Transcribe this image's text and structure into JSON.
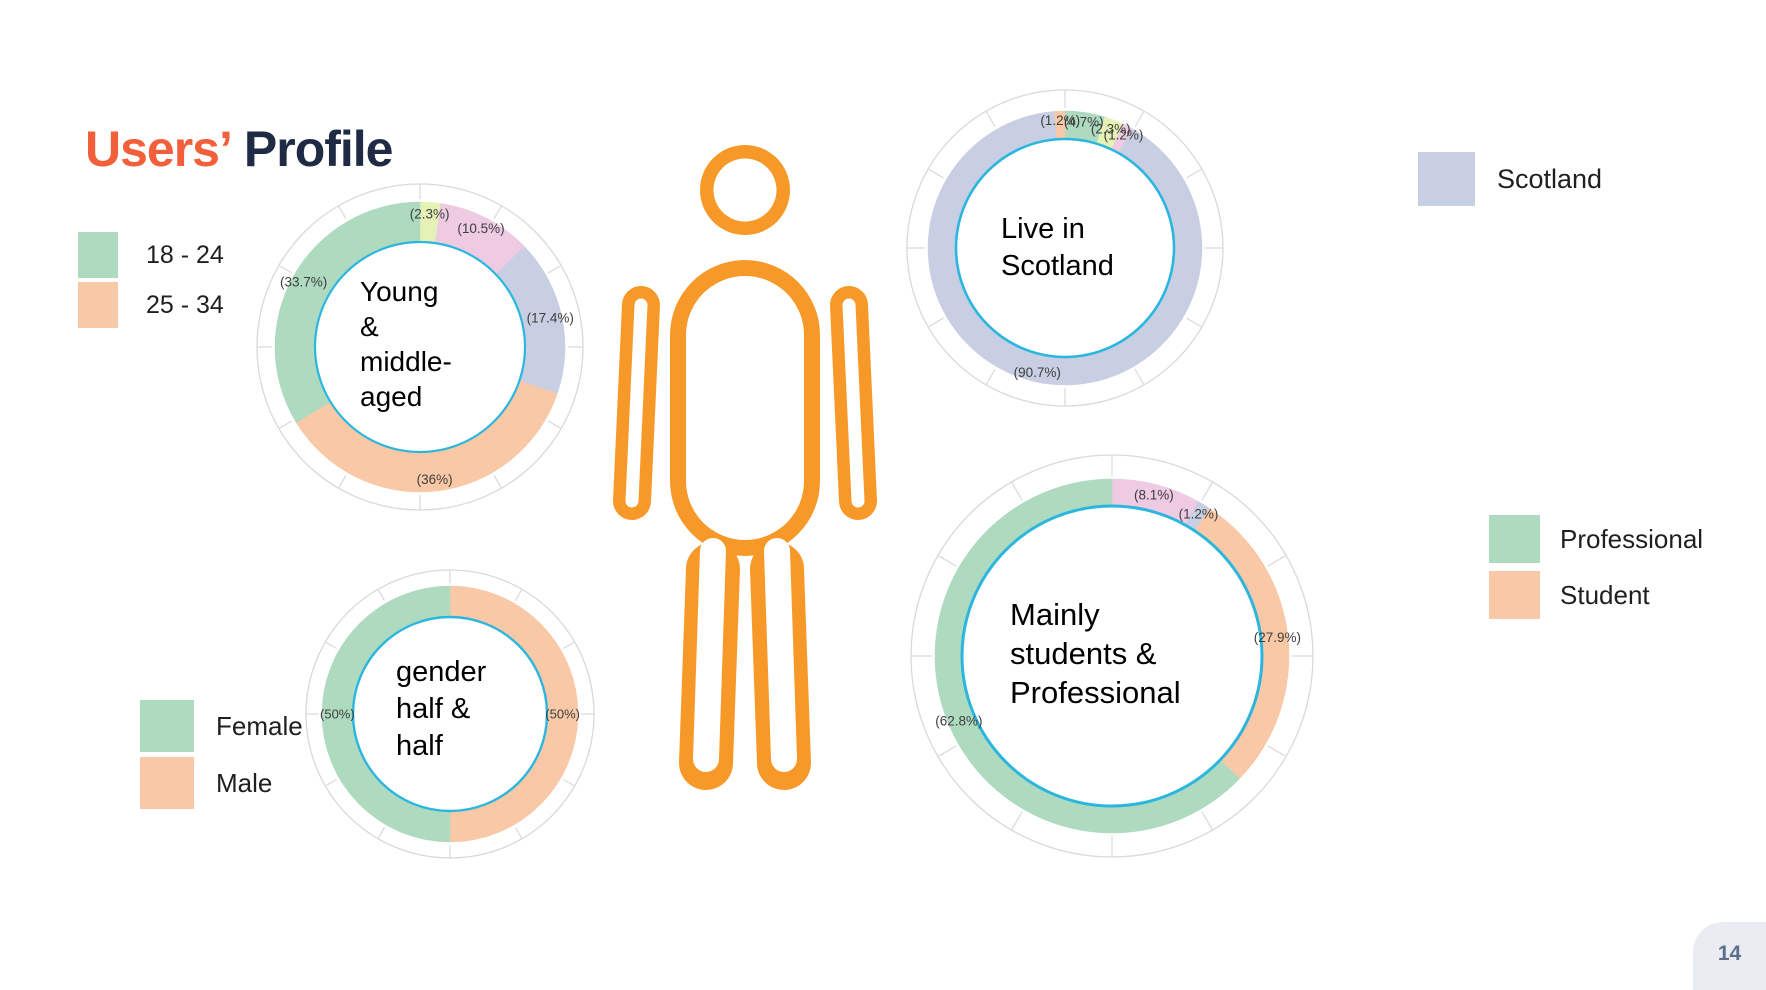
{
  "slide": {
    "title_accent": "Users’",
    "title_rest": "Profile",
    "page_number": "14"
  },
  "colors": {
    "accent_orange": "#f2603b",
    "title_navy": "#1f2b45",
    "person_orange": "#f79928",
    "ring_line": "#d9d9d9",
    "inner_circle_stroke": "#2bb6e0",
    "percent_label": "#3d3d3d",
    "page_tab_bg": "#e9edf2",
    "page_tab_text": "#5d6d8e",
    "green": "#aedabf",
    "peach": "#f9c8a6",
    "lavender": "#c9cfe2",
    "pink": "#eecae3",
    "lime": "#e6f2b5"
  },
  "chart_data": [
    {
      "id": "age",
      "type": "donut",
      "center_label": "Young & middle-aged",
      "center_lines": [
        "Young",
        "&",
        "middle-",
        "aged"
      ],
      "slices": [
        {
          "value": 2.3,
          "label": "(2.3%)",
          "color": "#e6f2b5"
        },
        {
          "value": 10.5,
          "label": "(10.5%)",
          "color": "#eecae3"
        },
        {
          "value": 17.4,
          "label": "(17.4%)",
          "color": "#c9cfe2"
        },
        {
          "value": 36,
          "label": "(36%)",
          "color": "#f9c8a6"
        },
        {
          "value": 33.7,
          "label": "(33.7%)",
          "color": "#aedabf"
        }
      ],
      "legend": [
        {
          "label": "18 - 24",
          "color": "#aedabf"
        },
        {
          "label": "25 - 34",
          "color": "#f9c8a6"
        }
      ]
    },
    {
      "id": "scotland",
      "type": "donut",
      "center_label": "Live in Scotland",
      "center_lines": [
        "Live in",
        "Scotland"
      ],
      "slices": [
        {
          "value": 4.7,
          "label": "(4.7%)",
          "color": "#aedabf"
        },
        {
          "value": 2.3,
          "label": "(2.3%)",
          "color": "#e6f2b5"
        },
        {
          "value": 1.2,
          "label": "(1.2%)",
          "color": "#eecae3"
        },
        {
          "value": 90.7,
          "label": "(90.7%)",
          "color": "#c9cfe2"
        },
        {
          "value": 1.2,
          "label": "(1.2%)",
          "color": "#f9c8a6"
        }
      ],
      "legend": [
        {
          "label": "Scotland",
          "color": "#c9cfe2"
        }
      ]
    },
    {
      "id": "gender",
      "type": "donut",
      "center_label": "gender half & half",
      "center_lines": [
        "gender",
        "half &",
        "half"
      ],
      "slices": [
        {
          "value": 50,
          "label": "(50%)",
          "color": "#f9c8a6"
        },
        {
          "value": 50,
          "label": "(50%)",
          "color": "#aedabf"
        }
      ],
      "legend": [
        {
          "label": "Female",
          "color": "#aedabf"
        },
        {
          "label": "Male",
          "color": "#f9c8a6"
        }
      ]
    },
    {
      "id": "occupation",
      "type": "donut",
      "center_label": "Mainly students & Professional",
      "center_lines": [
        "Mainly",
        "students &",
        "Professional"
      ],
      "slices": [
        {
          "value": 8.1,
          "label": "(8.1%)",
          "color": "#eecae3"
        },
        {
          "value": 1.2,
          "label": "(1.2%)",
          "color": "#c9cfe2"
        },
        {
          "value": 27.9,
          "label": "(27.9%)",
          "color": "#f9c8a6"
        },
        {
          "value": 62.8,
          "label": "(62.8%)",
          "color": "#aedabf"
        }
      ],
      "legend": [
        {
          "label": "Professional",
          "color": "#aedabf"
        },
        {
          "label": "Student",
          "color": "#f9c8a6"
        }
      ]
    }
  ]
}
